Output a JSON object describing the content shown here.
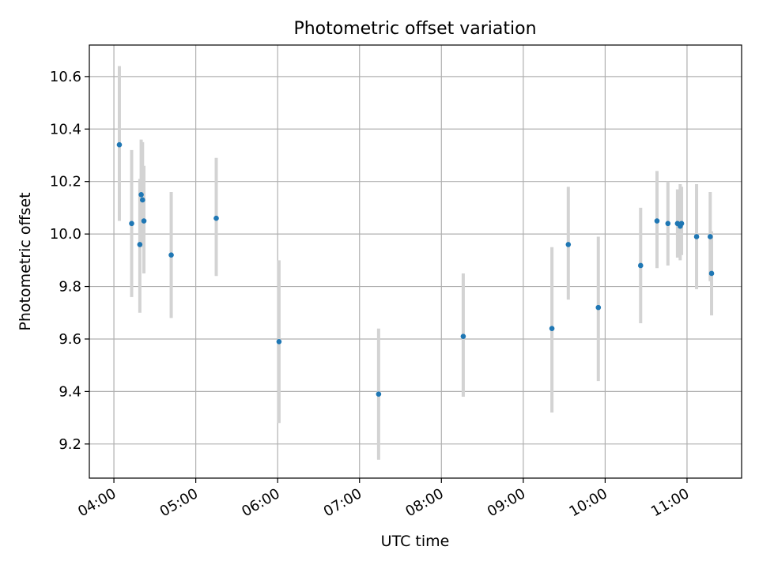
{
  "chart_data": {
    "type": "scatter",
    "title": "Photometric offset variation",
    "xlabel": "UTC time",
    "ylabel": "Photometric offset",
    "xlim": [
      "03:42",
      "11:40"
    ],
    "ylim": [
      9.07,
      10.72
    ],
    "x_ticks": [
      "04:00",
      "05:00",
      "06:00",
      "07:00",
      "08:00",
      "09:00",
      "10:00",
      "11:00"
    ],
    "y_ticks": [
      "9.2",
      "9.4",
      "9.6",
      "9.8",
      "10.0",
      "10.2",
      "10.4",
      "10.6"
    ],
    "grid": true,
    "colors": {
      "marker": "#1f77b4",
      "errorbar": "#d3d3d3",
      "grid": "#b0b0b0"
    },
    "series": [
      {
        "points": [
          {
            "t": "04:04",
            "y": 10.34,
            "lo": 10.05,
            "hi": 10.64
          },
          {
            "t": "04:13",
            "y": 10.04,
            "lo": 9.76,
            "hi": 10.32
          },
          {
            "t": "04:19",
            "y": 9.96,
            "lo": 9.7,
            "hi": 10.21
          },
          {
            "t": "04:20",
            "y": 10.15,
            "lo": 9.95,
            "hi": 10.36
          },
          {
            "t": "04:21",
            "y": 10.13,
            "lo": 9.96,
            "hi": 10.35
          },
          {
            "t": "04:22",
            "y": 10.05,
            "lo": 9.85,
            "hi": 10.26
          },
          {
            "t": "04:42",
            "y": 9.92,
            "lo": 9.68,
            "hi": 10.16
          },
          {
            "t": "05:15",
            "y": 10.06,
            "lo": 9.84,
            "hi": 10.29
          },
          {
            "t": "06:01",
            "y": 9.59,
            "lo": 9.28,
            "hi": 9.9
          },
          {
            "t": "07:14",
            "y": 9.39,
            "lo": 9.14,
            "hi": 9.64
          },
          {
            "t": "08:16",
            "y": 9.61,
            "lo": 9.38,
            "hi": 9.85
          },
          {
            "t": "09:21",
            "y": 9.64,
            "lo": 9.32,
            "hi": 9.95
          },
          {
            "t": "09:33",
            "y": 9.96,
            "lo": 9.75,
            "hi": 10.18
          },
          {
            "t": "09:55",
            "y": 9.72,
            "lo": 9.44,
            "hi": 9.99
          },
          {
            "t": "10:26",
            "y": 9.88,
            "lo": 9.66,
            "hi": 10.1
          },
          {
            "t": "10:38",
            "y": 10.05,
            "lo": 9.87,
            "hi": 10.24
          },
          {
            "t": "10:46",
            "y": 10.04,
            "lo": 9.88,
            "hi": 10.2
          },
          {
            "t": "10:53",
            "y": 10.04,
            "lo": 9.91,
            "hi": 10.17
          },
          {
            "t": "10:55",
            "y": 10.03,
            "lo": 9.9,
            "hi": 10.19
          },
          {
            "t": "10:56",
            "y": 10.04,
            "lo": 9.92,
            "hi": 10.18
          },
          {
            "t": "11:07",
            "y": 9.99,
            "lo": 9.79,
            "hi": 10.19
          },
          {
            "t": "11:17",
            "y": 9.99,
            "lo": 9.82,
            "hi": 10.16
          },
          {
            "t": "11:18",
            "y": 9.85,
            "lo": 9.69,
            "hi": 10.01
          }
        ]
      }
    ]
  }
}
